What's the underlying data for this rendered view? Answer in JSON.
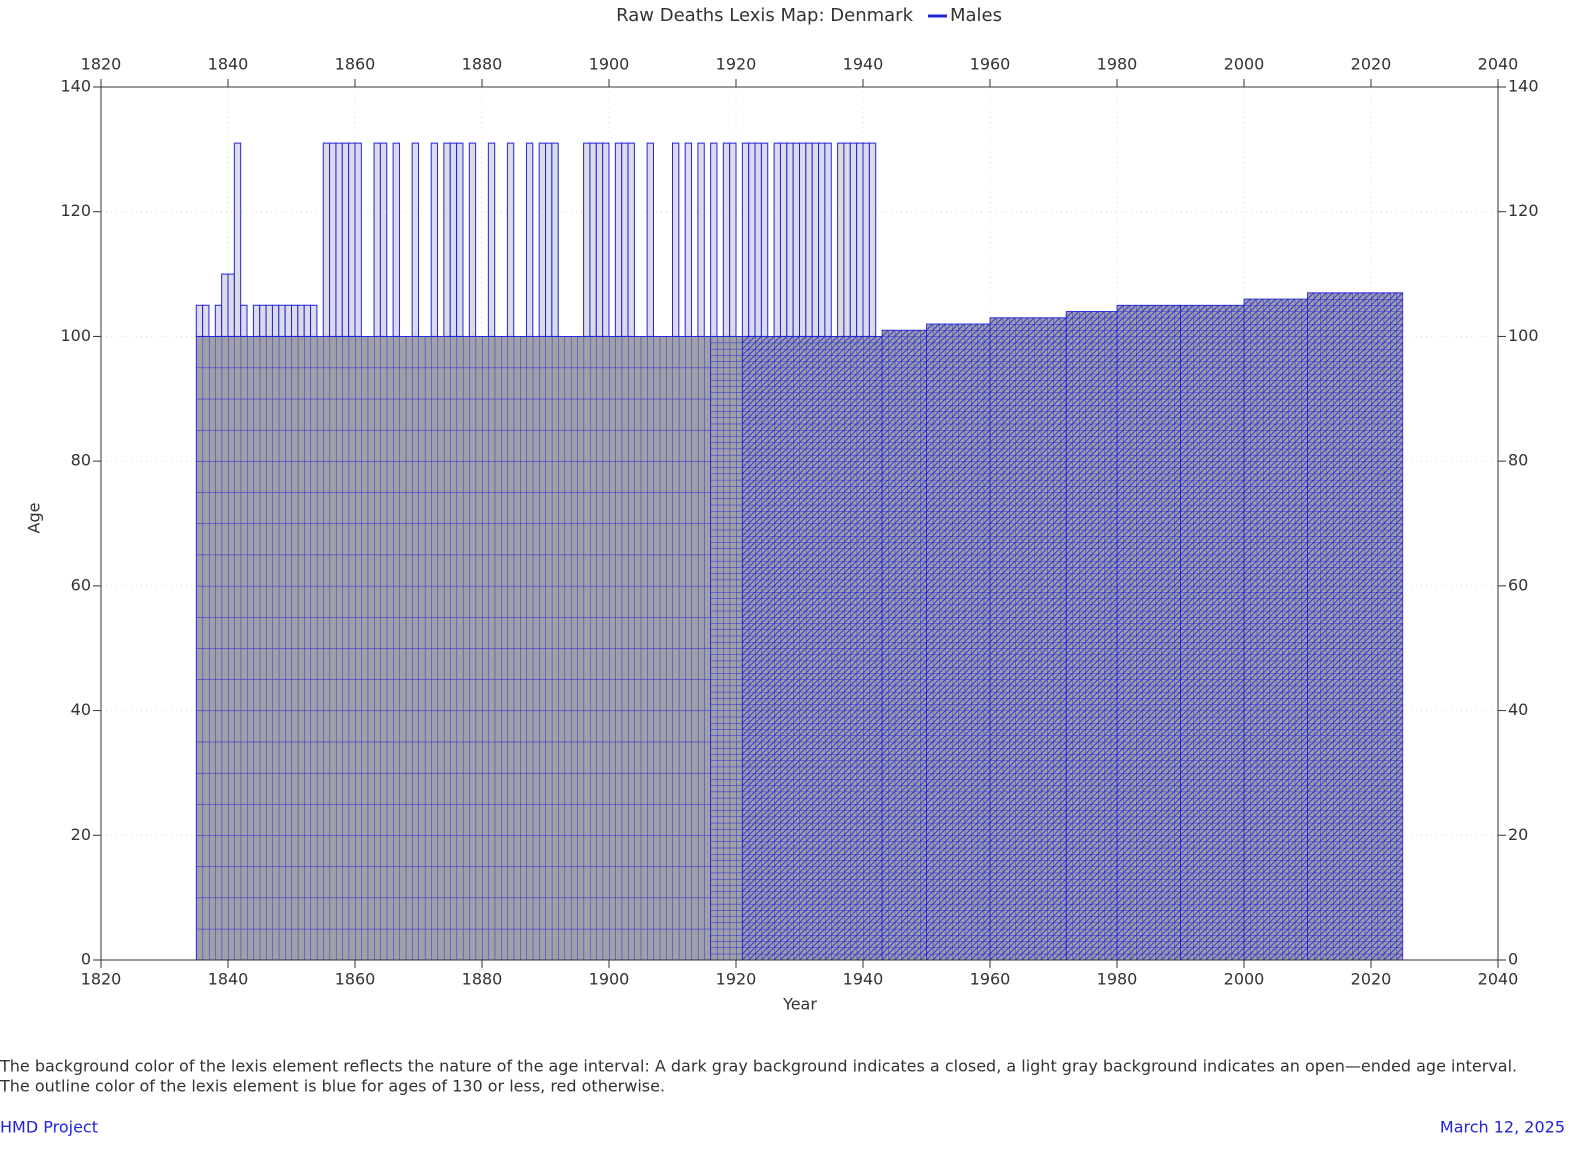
{
  "chart_data": {
    "type": "lexis",
    "title": "Raw Deaths Lexis Map: Denmark",
    "x_label": "Year",
    "y_label": "Age",
    "series": [
      {
        "name": "Males",
        "color": "#2222dd"
      }
    ],
    "xlim": [
      1820,
      2040
    ],
    "xticks": [
      1820,
      1840,
      1860,
      1880,
      1900,
      1920,
      1940,
      1960,
      1980,
      2000,
      2020,
      2040
    ],
    "ylim": [
      0,
      140
    ],
    "yticks": [
      0,
      20,
      40,
      60,
      80,
      100,
      120,
      140
    ],
    "grid": true,
    "closed_fill": "#a0a0a8",
    "open_fill": "#dcdce8",
    "closed_regions": [
      {
        "years": [
          1835,
          1916
        ],
        "ages": [
          0,
          100
        ],
        "pattern": "grid5"
      },
      {
        "years": [
          1916,
          1921
        ],
        "ages": [
          0,
          100
        ],
        "pattern": "grid1"
      }
    ],
    "triangle_steps": {
      "years": [
        1921,
        1943,
        1950,
        1960,
        1972,
        1980,
        1990,
        2000,
        2010,
        2025
      ],
      "ages": [
        100,
        101,
        102,
        103,
        104,
        105,
        105,
        106,
        107
      ]
    },
    "open_intervals": {
      "years": [
        1835,
        1836,
        1838,
        1839,
        1840,
        1841,
        1842,
        1844,
        1845,
        1846,
        1847,
        1848,
        1849,
        1850,
        1851,
        1852,
        1853,
        1855,
        1856,
        1857,
        1858,
        1859,
        1860,
        1863,
        1864,
        1866,
        1869,
        1872,
        1874,
        1875,
        1876,
        1878,
        1881,
        1884,
        1887,
        1889,
        1890,
        1891,
        1896,
        1897,
        1898,
        1899,
        1901,
        1902,
        1903,
        1906,
        1910,
        1912,
        1914,
        1916,
        1918,
        1919,
        1921,
        1922,
        1923,
        1924,
        1926,
        1927,
        1928,
        1929,
        1930,
        1931,
        1932,
        1933,
        1934,
        1936,
        1937,
        1938,
        1939,
        1940,
        1941
      ],
      "upper": [
        105,
        105,
        105,
        110,
        110,
        131,
        105,
        105,
        105,
        105,
        105,
        105,
        105,
        105,
        105,
        105,
        105,
        131,
        131,
        131,
        131,
        131,
        131,
        131,
        131,
        131,
        131,
        131,
        131,
        131,
        131,
        131,
        131,
        131,
        131,
        131,
        131,
        131,
        131,
        131,
        131,
        131,
        131,
        131,
        131,
        131,
        131,
        131,
        131,
        131,
        131,
        131,
        131,
        131,
        131,
        131,
        131,
        131,
        131,
        131,
        131,
        131,
        131,
        131,
        131,
        131,
        131,
        131,
        131,
        131,
        131
      ]
    },
    "open_lower": 100
  },
  "notes": [
    "The background color of the lexis element reflects the nature of the age interval: A dark gray background indicates a closed, a light gray background indicates an open—ended age interval.",
    "The outline color of the lexis element is blue for ages of 130 or less, red otherwise."
  ],
  "footer": {
    "left": "HMD Project",
    "right": "March 12, 2025"
  }
}
